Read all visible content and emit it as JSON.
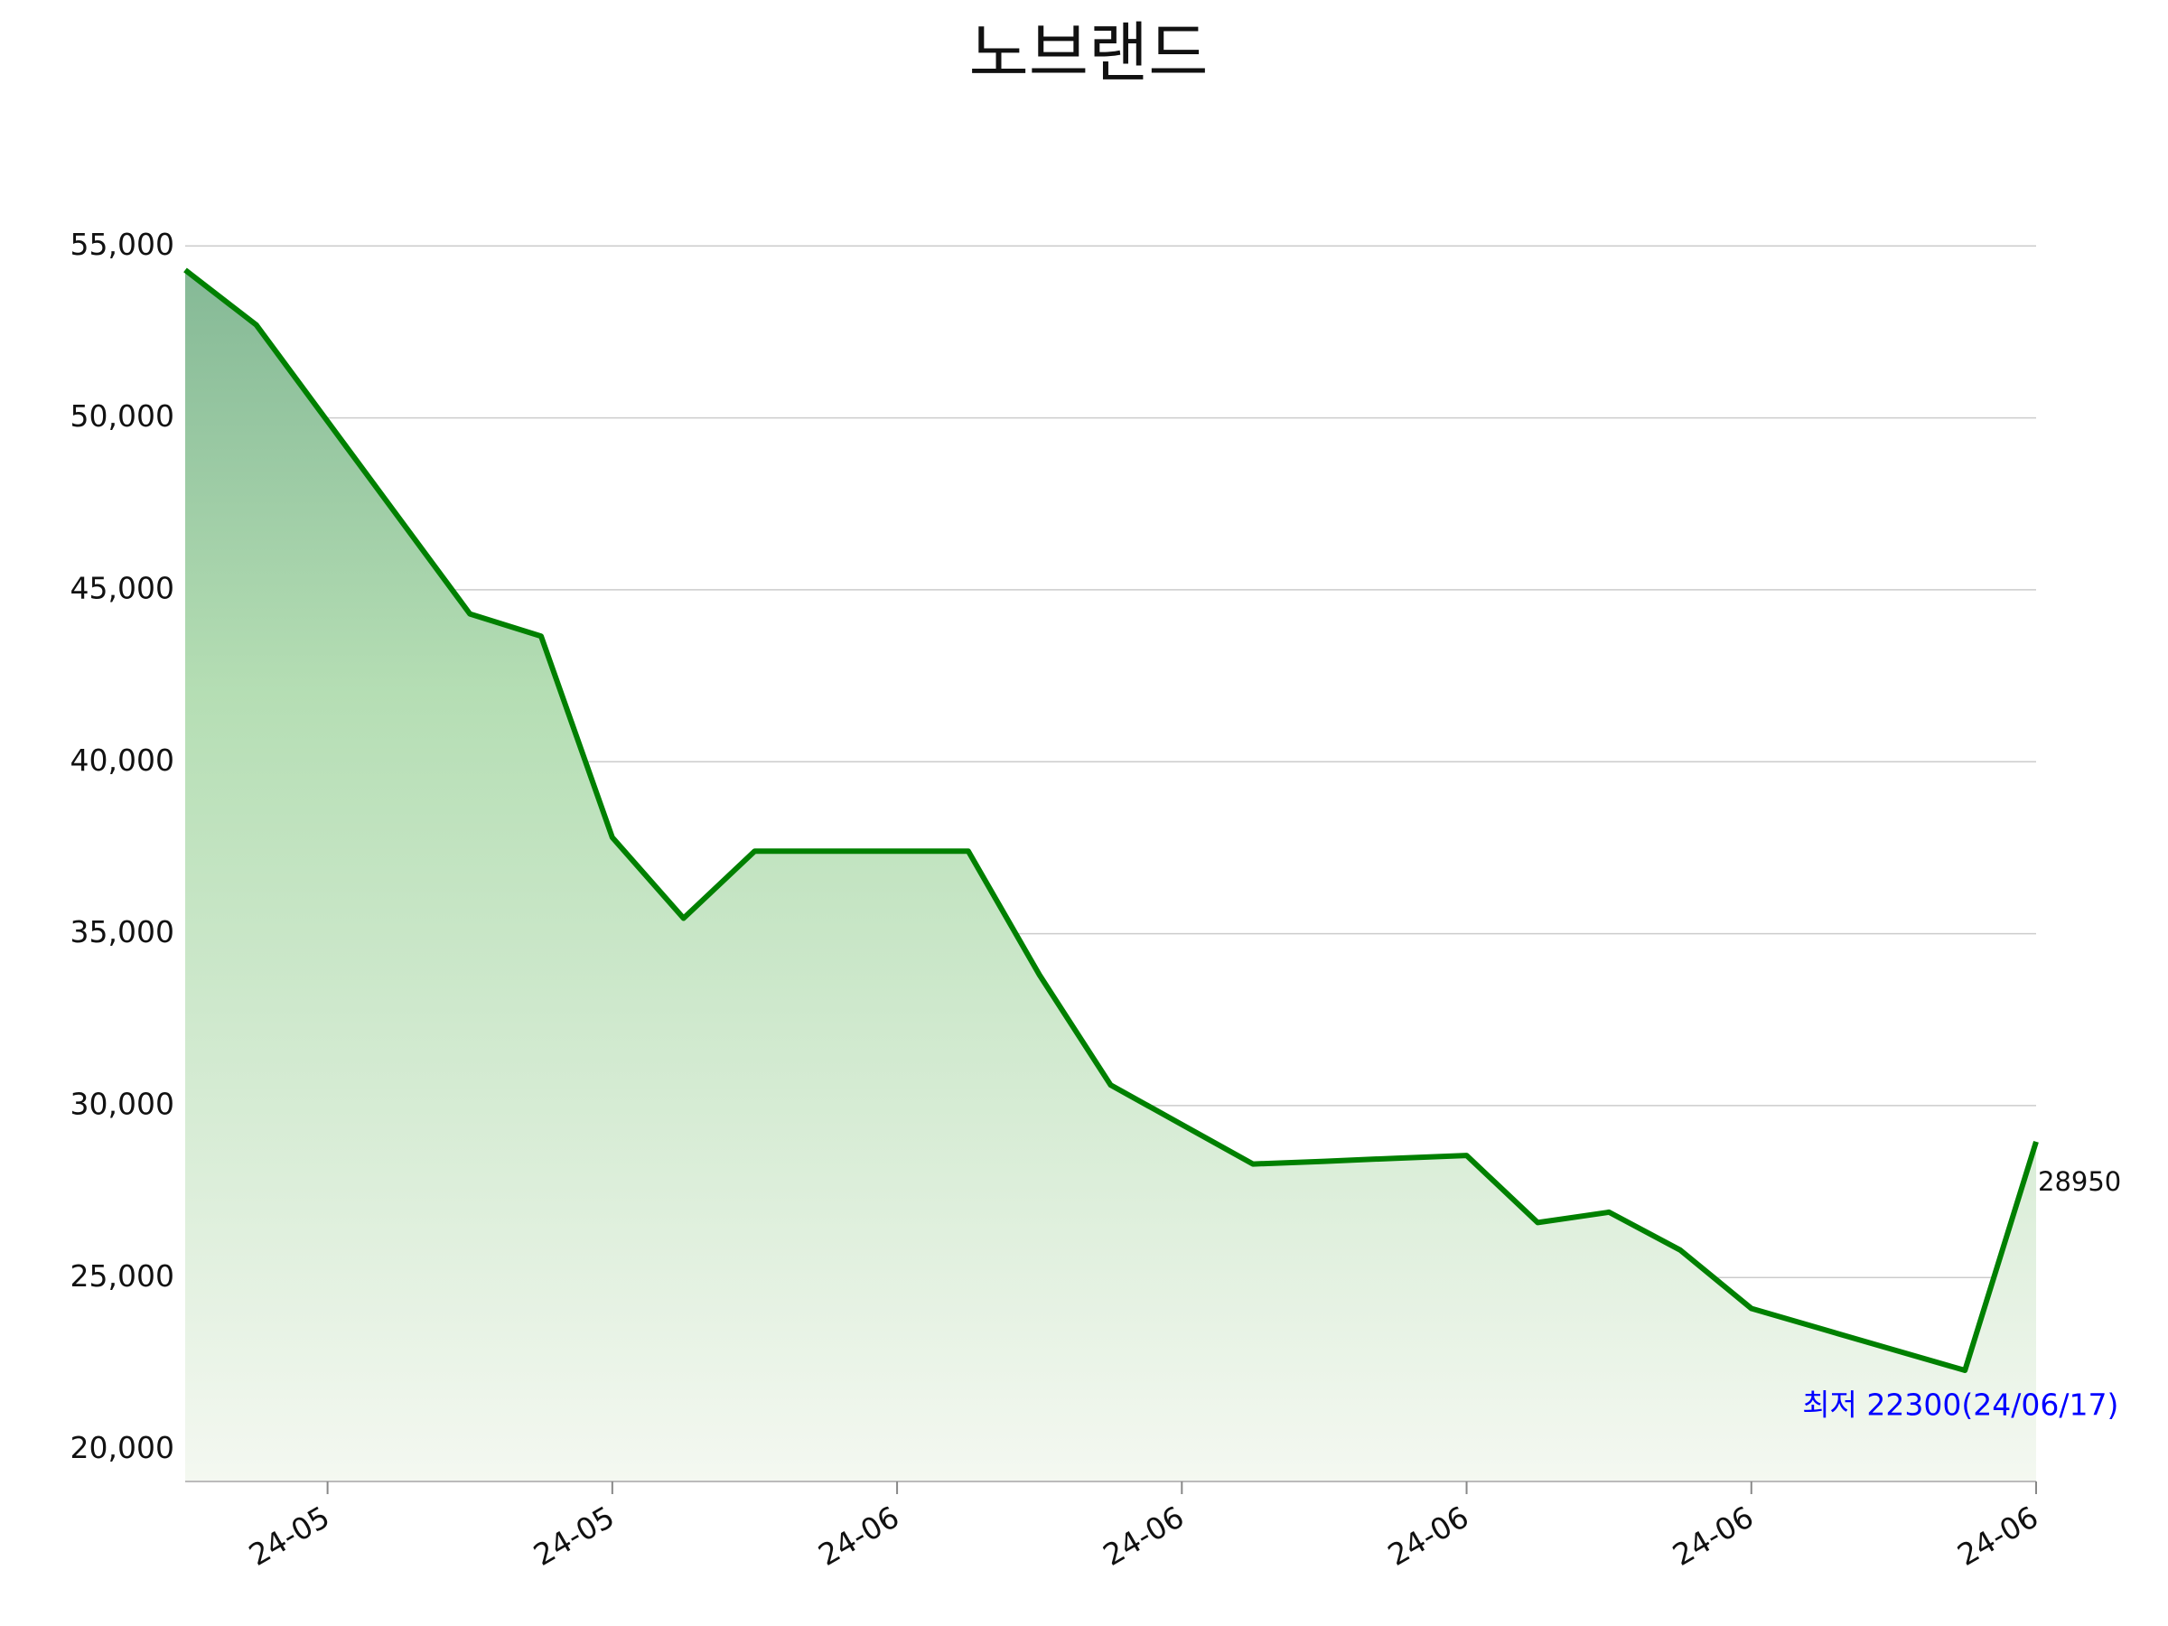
{
  "chart_data": {
    "type": "line",
    "title": "노브랜드",
    "categories": [
      null,
      null,
      "24-05",
      null,
      null,
      null,
      "24-05",
      null,
      null,
      null,
      "24-06",
      null,
      null,
      null,
      "24-06",
      null,
      null,
      null,
      "24-06",
      null,
      null,
      null,
      "24-06",
      null,
      null,
      null,
      "24-06"
    ],
    "values": [
      54300,
      52700,
      49900,
      47100,
      44300,
      43650,
      37800,
      35450,
      37400,
      37400,
      37400,
      37400,
      33800,
      30600,
      29450,
      28300,
      28380,
      28470,
      28550,
      26600,
      26900,
      25800,
      24100,
      23500,
      22900,
      22300,
      28950
    ],
    "color": "#008000",
    "ylim": [
      19070,
      55900
    ],
    "yticks": [
      {
        "value": 20000,
        "label": "20,000"
      },
      {
        "value": 25000,
        "label": "25,000"
      },
      {
        "value": 30000,
        "label": "30,000"
      },
      {
        "value": 35000,
        "label": "35,000"
      },
      {
        "value": 40000,
        "label": "40,000"
      },
      {
        "value": 45000,
        "label": "45,000"
      },
      {
        "value": 50000,
        "label": "50,000"
      },
      {
        "value": 55000,
        "label": "55,000"
      }
    ],
    "grid": true,
    "min_annotation": "최저 22300(24/06/17)",
    "min_index": 25,
    "min_color": "#0000ff"
  }
}
